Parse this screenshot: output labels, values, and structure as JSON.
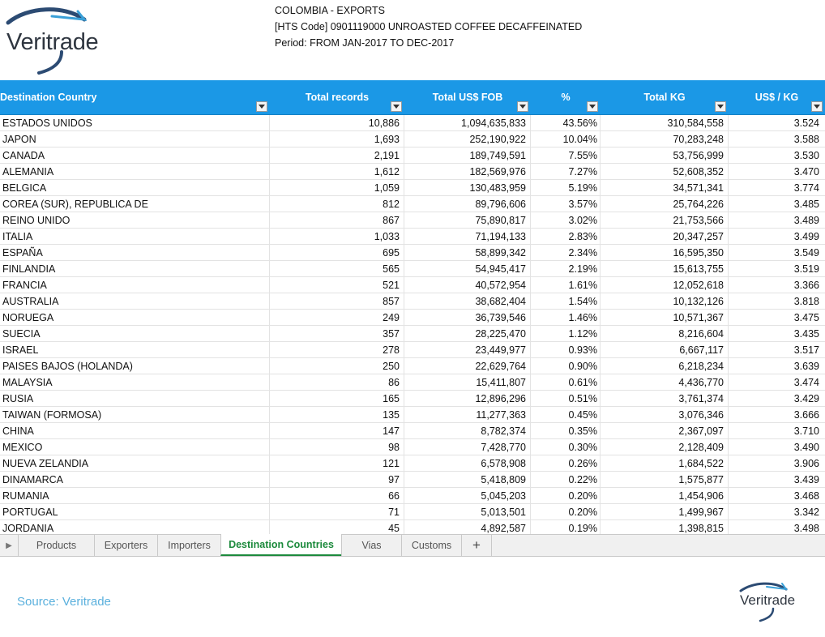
{
  "brand": {
    "name": "Veritrade",
    "accent": "#1b98e6",
    "logo_mark_colors": [
      "#2c4b73",
      "#3aa0d8"
    ]
  },
  "report": {
    "line1": "COLOMBIA - EXPORTS",
    "line2": "[HTS Code] 0901119000 UNROASTED COFFEE DECAFFEINATED",
    "line3": "Period: FROM JAN-2017 TO DEC-2017"
  },
  "table": {
    "headers": [
      "Destination Country",
      "Total records",
      "Total US$ FOB",
      "%",
      "Total KG",
      "US$ / KG"
    ],
    "header_bg": "#1b98e6",
    "rows": [
      [
        "ESTADOS UNIDOS",
        "10,886",
        "1,094,635,833",
        "43.56%",
        "310,584,558",
        "3.524"
      ],
      [
        "JAPON",
        "1,693",
        "252,190,922",
        "10.04%",
        "70,283,248",
        "3.588"
      ],
      [
        "CANADA",
        "2,191",
        "189,749,591",
        "7.55%",
        "53,756,999",
        "3.530"
      ],
      [
        "ALEMANIA",
        "1,612",
        "182,569,976",
        "7.27%",
        "52,608,352",
        "3.470"
      ],
      [
        "BELGICA",
        "1,059",
        "130,483,959",
        "5.19%",
        "34,571,341",
        "3.774"
      ],
      [
        "COREA (SUR), REPUBLICA DE",
        "812",
        "89,796,606",
        "3.57%",
        "25,764,226",
        "3.485"
      ],
      [
        "REINO UNIDO",
        "867",
        "75,890,817",
        "3.02%",
        "21,753,566",
        "3.489"
      ],
      [
        "ITALIA",
        "1,033",
        "71,194,133",
        "2.83%",
        "20,347,257",
        "3.499"
      ],
      [
        "ESPAÑA",
        "695",
        "58,899,342",
        "2.34%",
        "16,595,350",
        "3.549"
      ],
      [
        "FINLANDIA",
        "565",
        "54,945,417",
        "2.19%",
        "15,613,755",
        "3.519"
      ],
      [
        "FRANCIA",
        "521",
        "40,572,954",
        "1.61%",
        "12,052,618",
        "3.366"
      ],
      [
        "AUSTRALIA",
        "857",
        "38,682,404",
        "1.54%",
        "10,132,126",
        "3.818"
      ],
      [
        "NORUEGA",
        "249",
        "36,739,546",
        "1.46%",
        "10,571,367",
        "3.475"
      ],
      [
        "SUECIA",
        "357",
        "28,225,470",
        "1.12%",
        "8,216,604",
        "3.435"
      ],
      [
        "ISRAEL",
        "278",
        "23,449,977",
        "0.93%",
        "6,667,117",
        "3.517"
      ],
      [
        "PAISES BAJOS (HOLANDA)",
        "250",
        "22,629,764",
        "0.90%",
        "6,218,234",
        "3.639"
      ],
      [
        "MALAYSIA",
        "86",
        "15,411,807",
        "0.61%",
        "4,436,770",
        "3.474"
      ],
      [
        "RUSIA",
        "165",
        "12,896,296",
        "0.51%",
        "3,761,374",
        "3.429"
      ],
      [
        "TAIWAN (FORMOSA)",
        "135",
        "11,277,363",
        "0.45%",
        "3,076,346",
        "3.666"
      ],
      [
        "CHINA",
        "147",
        "8,782,374",
        "0.35%",
        "2,367,097",
        "3.710"
      ],
      [
        "MEXICO",
        "98",
        "7,428,770",
        "0.30%",
        "2,128,409",
        "3.490"
      ],
      [
        "NUEVA ZELANDIA",
        "121",
        "6,578,908",
        "0.26%",
        "1,684,522",
        "3.906"
      ],
      [
        "DINAMARCA",
        "97",
        "5,418,809",
        "0.22%",
        "1,575,877",
        "3.439"
      ],
      [
        "RUMANIA",
        "66",
        "5,045,203",
        "0.20%",
        "1,454,906",
        "3.468"
      ],
      [
        "PORTUGAL",
        "71",
        "5,013,501",
        "0.20%",
        "1,499,967",
        "3.342"
      ],
      [
        "JORDANIA",
        "45",
        "4,892,587",
        "0.19%",
        "1,398,815",
        "3.498"
      ]
    ]
  },
  "tabs": {
    "items": [
      "Products",
      "Exporters",
      "Importers",
      "Destination Countries",
      "Vias",
      "Customs"
    ],
    "active": "Destination Countries",
    "add_label": "+",
    "active_color": "#1c8a3c"
  },
  "footer": {
    "source": "Source: Veritrade",
    "source_color": "#5ab0dd"
  }
}
